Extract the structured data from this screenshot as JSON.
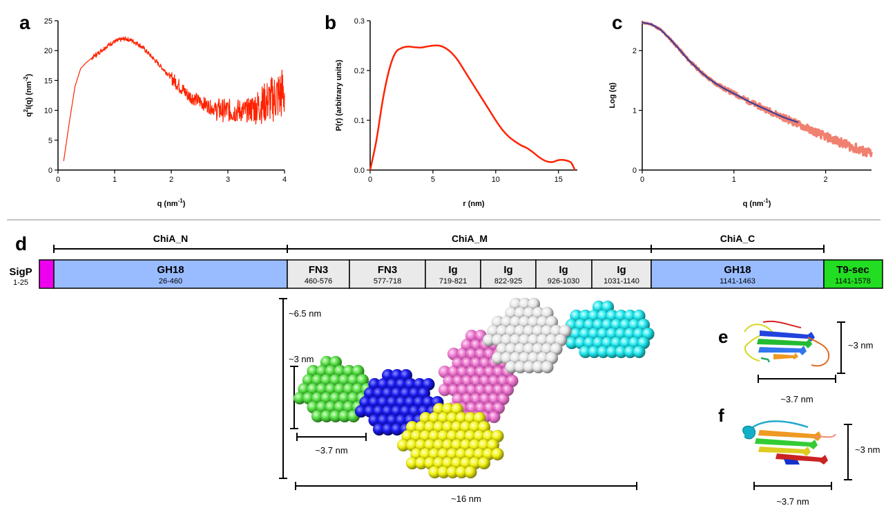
{
  "panels": {
    "a": "a",
    "b": "b",
    "c": "c",
    "d": "d",
    "e": "e",
    "f": "f"
  },
  "chart_data": [
    {
      "id": "a",
      "type": "line",
      "xlabel": "q (nm",
      "xlabel_sup": "-1",
      "xlabel_end": ")",
      "ylabel_pre": "q",
      "ylabel_sup1": "2",
      "ylabel_mid": "I(q) (nm",
      "ylabel_sup2": "-2",
      "ylabel_end": ")",
      "xlim": [
        0,
        4
      ],
      "ylim": [
        0,
        25
      ],
      "xticks": [
        0,
        1,
        2,
        3,
        4
      ],
      "yticks": [
        0,
        5,
        10,
        15,
        20,
        25
      ],
      "color": "#ff2200",
      "x": [
        0.1,
        0.2,
        0.3,
        0.4,
        0.5,
        0.6,
        0.7,
        0.8,
        0.9,
        1.0,
        1.1,
        1.2,
        1.3,
        1.4,
        1.5,
        1.6,
        1.7,
        1.8,
        1.9,
        2.0,
        2.1,
        2.2,
        2.3,
        2.4,
        2.5,
        2.6,
        2.7,
        2.8,
        2.9,
        3.0,
        3.1,
        3.2,
        3.3,
        3.4,
        3.5,
        3.6,
        3.7,
        3.8,
        3.9,
        4.0
      ],
      "y": [
        1.5,
        8,
        14,
        17,
        18,
        18.8,
        19.5,
        20.3,
        21,
        21.5,
        21.8,
        22,
        21.7,
        21.2,
        20.5,
        19.5,
        18.5,
        17.5,
        16.5,
        15.5,
        14.5,
        13.5,
        12.5,
        12,
        11.5,
        11,
        10.5,
        10.2,
        10,
        10,
        9.8,
        10,
        9.8,
        10.2,
        10.5,
        11,
        11.5,
        12,
        12.5,
        13
      ],
      "noise": 2.5
    },
    {
      "id": "b",
      "type": "line",
      "xlabel": "r (nm)",
      "ylabel": "P(r) (arbitrary units)",
      "xlim": [
        0,
        16.5
      ],
      "ylim": [
        0,
        0.3
      ],
      "xticks": [
        0,
        5,
        10,
        15
      ],
      "yticks": [
        "0.0",
        "0.1",
        "0.2",
        "0.3"
      ],
      "color": "#ff2200",
      "x": [
        0,
        0.5,
        1,
        1.5,
        2,
        2.5,
        3,
        3.5,
        4,
        4.5,
        5,
        5.5,
        6,
        6.5,
        7,
        7.5,
        8,
        8.5,
        9,
        9.5,
        10,
        10.5,
        11,
        11.5,
        12,
        12.5,
        13,
        13.5,
        14,
        14.5,
        15,
        15.5,
        16,
        16.3
      ],
      "y": [
        0,
        0.06,
        0.14,
        0.2,
        0.235,
        0.245,
        0.248,
        0.247,
        0.246,
        0.248,
        0.25,
        0.25,
        0.245,
        0.235,
        0.22,
        0.2,
        0.18,
        0.16,
        0.14,
        0.12,
        0.1,
        0.082,
        0.068,
        0.058,
        0.05,
        0.044,
        0.035,
        0.025,
        0.018,
        0.016,
        0.02,
        0.02,
        0.015,
        0
      ]
    },
    {
      "id": "c",
      "type": "line",
      "xlabel": "q (nm",
      "xlabel_sup": "-1",
      "xlabel_end": ")",
      "ylabel": "Log (q)",
      "xlim": [
        0,
        2.5
      ],
      "ylim": [
        0,
        2.5
      ],
      "xticks": [
        0,
        1,
        2
      ],
      "yticks": [
        0,
        1,
        2
      ],
      "series": [
        {
          "color": "#f08070",
          "x": [
            0,
            0.1,
            0.2,
            0.3,
            0.4,
            0.5,
            0.6,
            0.7,
            0.8,
            0.9,
            1.0,
            1.1,
            1.2,
            1.3,
            1.4,
            1.5,
            1.6,
            1.7,
            1.8,
            1.9,
            2.0,
            2.1,
            2.2,
            2.3,
            2.4,
            2.5
          ],
          "y": [
            2.47,
            2.44,
            2.35,
            2.2,
            2.03,
            1.85,
            1.7,
            1.56,
            1.45,
            1.36,
            1.28,
            1.2,
            1.12,
            1.05,
            0.98,
            0.91,
            0.84,
            0.77,
            0.7,
            0.63,
            0.56,
            0.5,
            0.44,
            0.38,
            0.32,
            0.27
          ]
        },
        {
          "color": "#3e3f9a",
          "x": [
            0,
            0.1,
            0.2,
            0.3,
            0.4,
            0.5,
            0.6,
            0.7,
            0.8,
            0.9,
            1.0,
            1.1,
            1.2,
            1.3,
            1.4,
            1.5,
            1.6,
            1.7
          ],
          "y": [
            2.47,
            2.44,
            2.35,
            2.2,
            2.03,
            1.85,
            1.7,
            1.56,
            1.45,
            1.36,
            1.28,
            1.2,
            1.12,
            1.05,
            0.98,
            0.91,
            0.85,
            0.8
          ]
        }
      ]
    }
  ],
  "domain_map": {
    "brackets": [
      {
        "label": "ChiA_N"
      },
      {
        "label": "ChiA_M"
      },
      {
        "label": "ChiA_C"
      }
    ],
    "sigp": {
      "name": "SigP",
      "range": "1-25"
    },
    "domains": [
      {
        "name": "GH18",
        "range": "26-460",
        "color": "#99bbff"
      },
      {
        "name": "FN3",
        "range": "460-576",
        "color": "#eaeaea"
      },
      {
        "name": "FN3",
        "range": "577-718",
        "color": "#eaeaea"
      },
      {
        "name": "Ig",
        "range": "719-821",
        "color": "#eaeaea"
      },
      {
        "name": "Ig",
        "range": "822-925",
        "color": "#eaeaea"
      },
      {
        "name": "Ig",
        "range": "926-1030",
        "color": "#eaeaea"
      },
      {
        "name": "Ig",
        "range": "1031-1140",
        "color": "#eaeaea"
      },
      {
        "name": "GH18",
        "range": "1141-1463",
        "color": "#99bbff"
      },
      {
        "name": "T9-sec",
        "range": "1141-1578",
        "color": "#22dd22"
      }
    ]
  },
  "model_labels": {
    "height": "~6.5 nm",
    "domain_height": "~3 nm",
    "domain_width": "~3.7 nm",
    "total_length": "~16 nm"
  },
  "structure_labels": {
    "e_height": "~3 nm",
    "e_width": "~3.7 nm",
    "f_height": "~3 nm",
    "f_width": "~3.7 nm"
  },
  "colors": {
    "sphere_green": "#55dd44",
    "sphere_blue": "#1a1aee",
    "sphere_yellow": "#f2f215",
    "sphere_pink": "#ee66cc",
    "sphere_white": "#e4e4e4",
    "sphere_cyan": "#22e8ee"
  }
}
